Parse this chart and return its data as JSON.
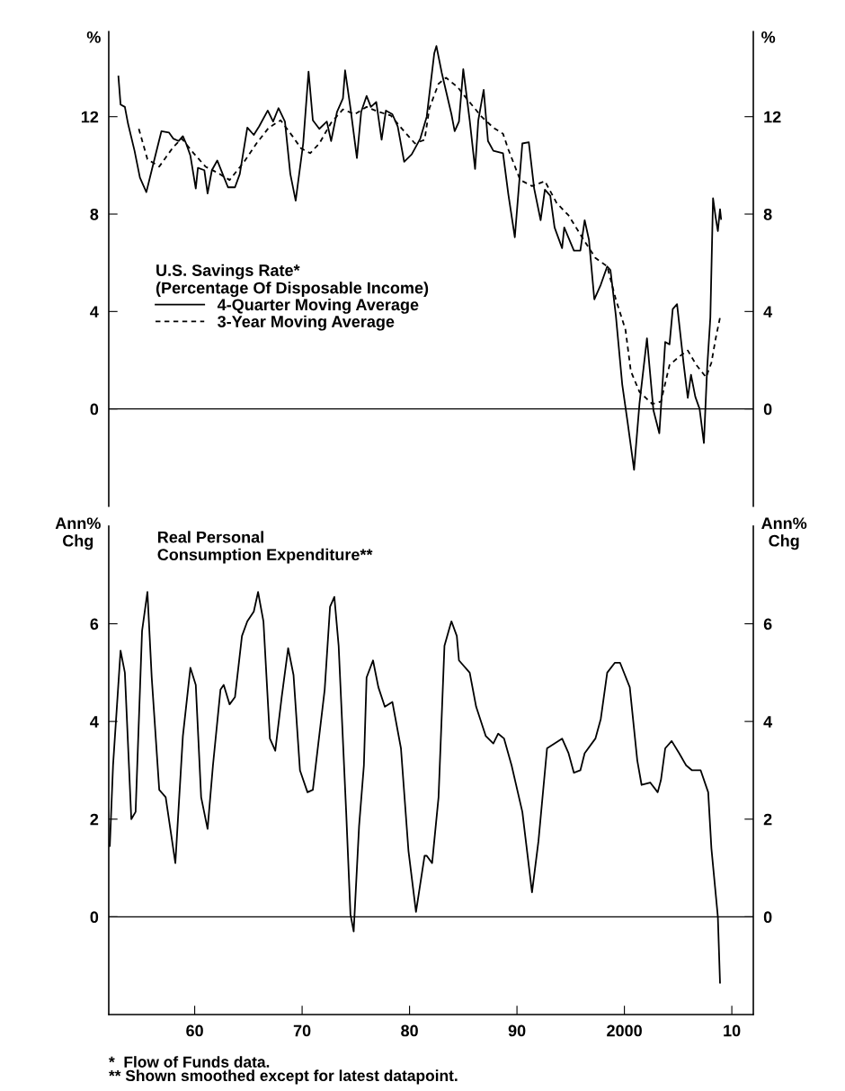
{
  "chart_data": [
    {
      "type": "line",
      "legend_title": "U.S. Savings Rate*\n(Percentage Of Disposable Income)",
      "ylabel": "%",
      "y2label": "%",
      "legend": "center left",
      "grid": false,
      "tick_labels": "y",
      "marker": "none",
      "xlim": [
        1952,
        2012
      ],
      "ylim": [
        -4,
        15.5
      ],
      "yticks": [
        0,
        4,
        8,
        12
      ],
      "y2lim": [
        -4,
        15.5
      ],
      "y2ticks": [
        0,
        4,
        8,
        12
      ],
      "ref_lines": [
        {
          "axis": "y",
          "value": 0,
          "color": "#000000"
        }
      ],
      "series": [
        {
          "name": "4-Quarter Moving Average",
          "color": "#000000",
          "line_style": "solid",
          "x": [
            1952.9,
            1953.1,
            1953.5,
            1953.8,
            1954.4,
            1954.9,
            1955.1,
            1955.5,
            1956.0,
            1956.9,
            1957.6,
            1958.0,
            1958.5,
            1958.9,
            1959.2,
            1959.6,
            1960.1,
            1960.3,
            1960.9,
            1961.2,
            1961.6,
            1962.1,
            1962.6,
            1963.1,
            1963.75,
            1964.2,
            1964.9,
            1965.5,
            1966.0,
            1966.8,
            1967.3,
            1967.8,
            1968.4,
            1968.9,
            1969.4,
            1970.1,
            1970.6,
            1971.0,
            1971.6,
            1972.3,
            1972.7,
            1973.25,
            1973.8,
            1974.0,
            1974.5,
            1975.1,
            1975.5,
            1976.0,
            1976.4,
            1976.9,
            1977.4,
            1977.8,
            1978.4,
            1978.9,
            1979.5,
            1980.2,
            1981.0,
            1981.6,
            1982.3,
            1982.5,
            1983.0,
            1983.9,
            1984.2,
            1984.6,
            1985.0,
            1985.6,
            1986.1,
            1986.4,
            1986.9,
            1987.3,
            1987.8,
            1988.7,
            1989.2,
            1989.8,
            1990.5,
            1991.1,
            1991.6,
            1992.2,
            1992.6,
            1993.1,
            1993.5,
            1994.2,
            1994.4,
            1995.3,
            1995.9,
            1996.3,
            1996.7,
            1997.2,
            1997.8,
            1998.4,
            1998.7,
            1999.2,
            1999.8,
            2000.3,
            2000.9,
            2001.4,
            2002.1,
            2002.7,
            2003.25,
            2003.8,
            2004.2,
            2004.5,
            2004.9,
            2005.5,
            2005.9,
            2006.2,
            2006.6,
            2007.0,
            2007.4,
            2007.7,
            2008.0,
            2008.25,
            2008.5,
            2008.7,
            2008.9,
            2009.0
          ],
          "values": [
            13.65,
            12.5,
            12.4,
            11.7,
            10.6,
            9.5,
            9.3,
            8.9,
            9.8,
            11.4,
            11.35,
            11.1,
            11.0,
            11.2,
            10.9,
            10.4,
            9.05,
            9.9,
            9.8,
            8.85,
            9.8,
            10.2,
            9.65,
            9.1,
            9.1,
            9.65,
            11.55,
            11.25,
            11.6,
            12.25,
            11.8,
            12.35,
            11.8,
            9.65,
            8.55,
            10.9,
            13.85,
            11.85,
            11.5,
            11.8,
            11.0,
            12.2,
            12.75,
            13.9,
            12.35,
            10.3,
            12.2,
            12.85,
            12.4,
            12.6,
            11.05,
            12.25,
            12.1,
            11.6,
            10.15,
            10.45,
            11.1,
            12.0,
            14.6,
            14.9,
            13.8,
            12.1,
            11.4,
            11.8,
            13.95,
            11.85,
            9.85,
            11.85,
            13.1,
            11.0,
            10.6,
            10.5,
            8.8,
            7.05,
            10.9,
            10.95,
            9.05,
            7.75,
            9.0,
            8.75,
            7.45,
            6.6,
            7.45,
            6.5,
            6.5,
            7.75,
            6.95,
            4.5,
            5.1,
            5.85,
            5.7,
            3.85,
            1.0,
            -0.55,
            -2.5,
            0.2,
            2.9,
            -0.05,
            -1.0,
            2.75,
            2.65,
            4.1,
            4.3,
            1.9,
            0.45,
            1.4,
            0.5,
            0.0,
            -1.4,
            1.65,
            3.75,
            8.65,
            7.85,
            7.3,
            8.2,
            7.8
          ]
        },
        {
          "name": "3-Year Moving Average",
          "color": "#000000",
          "line_style": "dashed",
          "x": [
            1954.8,
            1955.6,
            1956.7,
            1958.0,
            1958.8,
            1959.9,
            1961.0,
            1962.1,
            1963.25,
            1964.6,
            1965.75,
            1966.9,
            1968.0,
            1969.1,
            1969.9,
            1970.75,
            1971.6,
            1972.7,
            1973.8,
            1974.9,
            1976.0,
            1977.1,
            1978.25,
            1979.4,
            1980.5,
            1981.4,
            1981.85,
            1982.7,
            1983.4,
            1984.5,
            1985.3,
            1986.7,
            1987.8,
            1988.7,
            1989.2,
            1990.3,
            1991.4,
            1992.6,
            1993.7,
            1994.8,
            1996.2,
            1997.3,
            1998.4,
            1999.2,
            2000.1,
            2000.6,
            2001.4,
            2002.6,
            2003.4,
            2004.2,
            2005.1,
            2005.9,
            2006.7,
            2007.6,
            2008.1,
            2008.5,
            2008.9
          ],
          "values": [
            11.5,
            10.25,
            9.95,
            10.75,
            11.1,
            10.5,
            9.95,
            9.7,
            9.4,
            10.15,
            10.9,
            11.55,
            11.85,
            11.2,
            10.7,
            10.5,
            10.9,
            11.75,
            12.3,
            12.1,
            12.4,
            12.2,
            12.05,
            11.45,
            10.9,
            11.05,
            12.35,
            13.35,
            13.6,
            13.2,
            12.75,
            12.0,
            11.55,
            11.3,
            10.65,
            9.4,
            9.15,
            9.35,
            8.45,
            7.95,
            6.95,
            6.2,
            5.85,
            4.5,
            3.25,
            1.55,
            0.7,
            0.2,
            0.3,
            1.8,
            2.15,
            2.4,
            1.8,
            1.3,
            1.9,
            2.9,
            3.75
          ]
        }
      ]
    },
    {
      "type": "line",
      "title": "Real Personal\nConsumption Expenditure**",
      "ylabel": "Ann%\nChg",
      "y2label": "Ann%\nChg",
      "grid": false,
      "legend": false,
      "marker": "none",
      "xlim": [
        1952,
        2012
      ],
      "xticks": [
        {
          "value": 1960,
          "label": "60"
        },
        {
          "value": 1970,
          "label": "70"
        },
        {
          "value": 1980,
          "label": "80"
        },
        {
          "value": 1990,
          "label": "90"
        },
        2000,
        {
          "value": 2010,
          "label": "10"
        }
      ],
      "ylim": [
        -2,
        8
      ],
      "yticks": [
        0,
        2,
        4,
        6
      ],
      "y2lim": [
        -2,
        8
      ],
      "y2ticks": [
        0,
        2,
        4,
        6
      ],
      "ref_lines": [
        {
          "axis": "y",
          "value": 0,
          "color": "#000000"
        }
      ],
      "annotations": [
        "*  Flow of Funds data.",
        "** Shown smoothed except for latest datapoint."
      ],
      "series": [
        {
          "color": "#000000",
          "line_style": "solid",
          "x": [
            1952.1,
            1952.4,
            1953.1,
            1953.5,
            1954.1,
            1954.5,
            1955.1,
            1955.6,
            1956.0,
            1956.7,
            1957.3,
            1958.2,
            1958.9,
            1959.6,
            1960.1,
            1960.6,
            1961.2,
            1961.7,
            1962.4,
            1962.7,
            1963.25,
            1963.75,
            1964.4,
            1964.9,
            1965.5,
            1965.9,
            1966.4,
            1967.0,
            1967.5,
            1968.1,
            1968.7,
            1969.2,
            1969.8,
            1970.5,
            1971.0,
            1972.1,
            1972.6,
            1973.0,
            1973.4,
            1974.1,
            1974.5,
            1974.8,
            1975.3,
            1975.75,
            1976.0,
            1976.6,
            1977.1,
            1977.7,
            1978.4,
            1979.2,
            1979.9,
            1980.6,
            1981.4,
            1981.6,
            1982.1,
            1982.7,
            1983.25,
            1983.7,
            1983.9,
            1984.4,
            1984.6,
            1985.6,
            1986.2,
            1987.1,
            1987.8,
            1988.25,
            1988.8,
            1989.5,
            1990.5,
            1991.4,
            1992.0,
            1992.8,
            1994.2,
            1994.8,
            1995.3,
            1995.9,
            1996.3,
            1997.3,
            1997.8,
            1998.4,
            1999.1,
            1999.6,
            2000.5,
            2001.2,
            2001.6,
            2002.4,
            2003.1,
            2003.4,
            2003.8,
            2004.4,
            2005.1,
            2005.75,
            2006.3,
            2007.1,
            2007.8,
            2008.1,
            2008.7,
            2008.9
          ],
          "values": [
            1.45,
            3.1,
            5.45,
            5.0,
            2.0,
            2.15,
            5.85,
            6.65,
            4.9,
            2.6,
            2.45,
            1.1,
            3.7,
            5.1,
            4.75,
            2.45,
            1.8,
            3.1,
            4.65,
            4.75,
            4.35,
            4.5,
            5.75,
            6.05,
            6.25,
            6.65,
            6.05,
            3.65,
            3.4,
            4.5,
            5.5,
            4.95,
            3.0,
            2.55,
            2.6,
            4.65,
            6.35,
            6.55,
            5.55,
            2.15,
            0.05,
            -0.3,
            1.85,
            3.1,
            4.9,
            5.25,
            4.7,
            4.3,
            4.4,
            3.45,
            1.35,
            0.1,
            1.25,
            1.25,
            1.1,
            2.45,
            5.55,
            5.9,
            6.05,
            5.75,
            5.25,
            5.0,
            4.3,
            3.7,
            3.55,
            3.75,
            3.65,
            3.1,
            2.15,
            0.5,
            1.55,
            3.45,
            3.65,
            3.35,
            2.95,
            3.0,
            3.35,
            3.65,
            4.05,
            5.0,
            5.2,
            5.2,
            4.7,
            3.2,
            2.7,
            2.75,
            2.55,
            2.8,
            3.45,
            3.6,
            3.35,
            3.1,
            3.0,
            3.0,
            2.55,
            1.4,
            0.0,
            -1.35
          ]
        }
      ]
    }
  ]
}
